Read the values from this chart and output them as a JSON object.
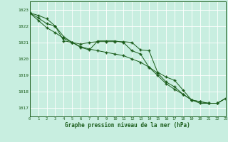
{
  "title": "Graphe pression niveau de la mer (hPa)",
  "background_color": "#c8eee0",
  "grid_color": "#ffffff",
  "grid_minor_color": "#e8f8f0",
  "line_color": "#1a5c1a",
  "xlim": [
    0,
    23
  ],
  "ylim": [
    1016.5,
    1023.5
  ],
  "yticks": [
    1017,
    1018,
    1019,
    1020,
    1021,
    1022,
    1023
  ],
  "xticks": [
    0,
    1,
    2,
    3,
    4,
    5,
    6,
    7,
    8,
    9,
    10,
    11,
    12,
    13,
    14,
    15,
    16,
    17,
    18,
    19,
    20,
    21,
    22,
    23
  ],
  "hours": [
    0,
    1,
    2,
    3,
    4,
    5,
    6,
    7,
    8,
    9,
    10,
    11,
    12,
    13,
    14,
    15,
    16,
    17,
    18,
    19,
    20,
    21,
    22,
    23
  ],
  "series1": [
    1022.8,
    1022.65,
    1022.45,
    1022.0,
    1021.1,
    1021.0,
    1020.9,
    1021.0,
    1021.05,
    1021.05,
    1021.05,
    1021.05,
    1021.0,
    1020.55,
    1020.5,
    1019.2,
    1018.9,
    1018.7,
    1018.1,
    1017.5,
    1017.3,
    1017.3,
    1017.3,
    1017.6
  ],
  "series2": [
    1022.8,
    1022.5,
    1022.15,
    1022.0,
    1021.35,
    1021.0,
    1020.7,
    1020.55,
    1021.1,
    1021.1,
    1021.1,
    1021.0,
    1020.5,
    1020.3,
    1019.5,
    1019.15,
    1018.6,
    1018.3,
    1017.85,
    1017.5,
    1017.4,
    1017.3,
    1017.3,
    1017.6
  ],
  "series3": [
    1022.8,
    1022.35,
    1021.9,
    1021.6,
    1021.25,
    1021.0,
    1020.75,
    1020.6,
    1020.5,
    1020.4,
    1020.3,
    1020.2,
    1020.0,
    1019.8,
    1019.5,
    1019.0,
    1018.5,
    1018.15,
    1017.85,
    1017.5,
    1017.4,
    1017.3,
    1017.3,
    1017.6
  ]
}
